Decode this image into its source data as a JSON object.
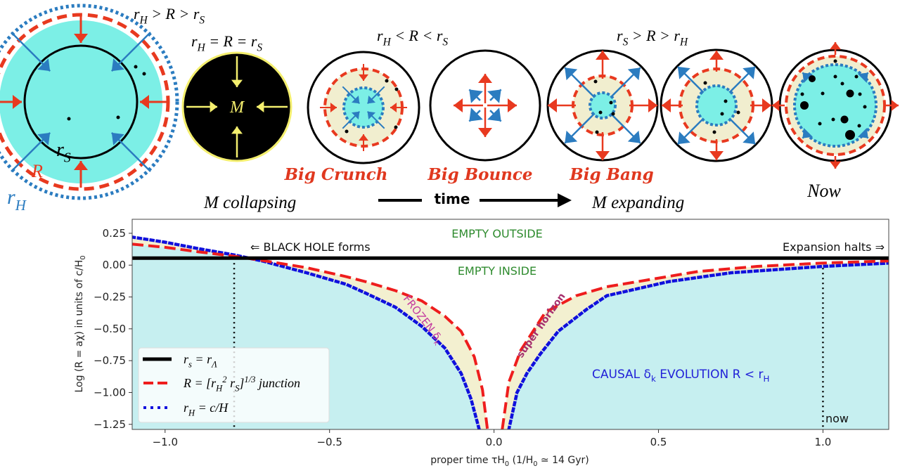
{
  "diagram": {
    "labels": {
      "cond_collapse": "r_H > R > r_S",
      "cond_equal": "r_H = R = r_S",
      "cond_crunch": "r_H < R < r_S",
      "cond_expand": "r_S > R > r_H",
      "rs": "r_S",
      "R": "R",
      "rh": "r_H",
      "mass": "M",
      "big_crunch": "Big Crunch",
      "big_bounce": "Big Bounce",
      "big_bang": "Big Bang",
      "m_collapsing": "M collapsing",
      "time": "time",
      "m_expanding": "M expanding",
      "now": "Now"
    },
    "colors": {
      "red": "#e8391f",
      "blue": "#2b7cc0",
      "cyan": "#7cefe6",
      "beige": "#f1eecf",
      "yellow": "#f4ef6e"
    }
  },
  "chart_data": {
    "type": "line",
    "xlabel": "proper time τH_0 (1/H_0 ≃  14 Gyr)",
    "ylabel": "Log (R = aχ)  in units of c/H_0",
    "xlim": [
      -1.1,
      1.2
    ],
    "ylim": [
      -1.29,
      0.36
    ],
    "xticks": [
      -1.0,
      -0.5,
      0.0,
      0.5,
      1.0
    ],
    "xtick_labels": [
      "−1.0",
      "−0.5",
      "0.0",
      "0.5",
      "1.0"
    ],
    "yticks": [
      0.25,
      0.0,
      -0.25,
      -0.5,
      -0.75,
      -1.0,
      -1.25
    ],
    "ytick_labels": [
      "0.25",
      "0.00",
      "−0.25",
      "−0.50",
      "−0.75",
      "−1.00",
      "−1.25"
    ],
    "grid": false,
    "legend_position": "lower-left",
    "series": [
      {
        "name": "r_s = r_Λ",
        "style": "solid",
        "color": "#000000",
        "y_constant": 0.055
      },
      {
        "name": "R = [r_H^2 r_S]^{1/3} junction",
        "style": "dashed",
        "color": "#ee1d1d",
        "branches": [
          {
            "x": [
              -1.1,
              -1.0,
              -0.9,
              -0.79,
              -0.7,
              -0.57,
              -0.45,
              -0.39,
              -0.3,
              -0.22,
              -0.15,
              -0.1,
              -0.06,
              -0.035,
              -0.02
            ],
            "y": [
              0.165,
              0.14,
              0.105,
              0.07,
              0.035,
              -0.02,
              -0.09,
              -0.13,
              -0.2,
              -0.28,
              -0.4,
              -0.52,
              -0.72,
              -0.98,
              -1.29
            ]
          },
          {
            "x": [
              0.025,
              0.045,
              0.081,
              0.156,
              0.25,
              0.343,
              0.62,
              0.8,
              0.995,
              1.2
            ],
            "y": [
              -1.29,
              -0.92,
              -0.67,
              -0.37,
              -0.24,
              -0.17,
              -0.05,
              -0.01,
              0.016,
              0.033
            ]
          }
        ]
      },
      {
        "name": "r_H = c/H",
        "style": "dotted",
        "color": "#1010dd",
        "branches": [
          {
            "x": [
              -1.1,
              -1.0,
              -0.9,
              -0.79,
              -0.7,
              -0.57,
              -0.45,
              -0.39,
              -0.3,
              -0.22,
              -0.15,
              -0.1,
              -0.07,
              -0.045
            ],
            "y": [
              0.22,
              0.18,
              0.13,
              0.08,
              0.03,
              -0.06,
              -0.15,
              -0.22,
              -0.33,
              -0.48,
              -0.65,
              -0.85,
              -1.05,
              -1.29
            ]
          },
          {
            "x": [
              0.045,
              0.07,
              0.1,
              0.14,
              0.195,
              0.28,
              0.343,
              0.53,
              0.72,
              1.0,
              1.2
            ],
            "y": [
              -1.29,
              -1.0,
              -0.85,
              -0.7,
              -0.52,
              -0.35,
              -0.24,
              -0.13,
              -0.06,
              -0.01,
              0.016
            ]
          }
        ]
      }
    ],
    "vlines": [
      {
        "x": -0.79,
        "style": "dotted"
      },
      {
        "x": 1.0,
        "style": "dotted"
      }
    ],
    "annotations": {
      "empty_outside": "EMPTY OUTSIDE",
      "empty_inside": "EMPTY INSIDE",
      "black_hole": "⇐ BLACK HOLE forms",
      "expansion_halts": "Expansion halts ⇒",
      "frozen": "FROZEN δ_k",
      "super_horizon": "super horizon",
      "causal": "CAUSAL δ_k EVOLUTION R < r_H",
      "now": "now"
    },
    "colors": {
      "causal_fill": "#c6eff0",
      "band_fill": "#f3f0d0",
      "annotation_green": "#2e8b2e",
      "annotation_magenta": "#c43ca0",
      "annotation_blue": "#2222d8"
    }
  }
}
